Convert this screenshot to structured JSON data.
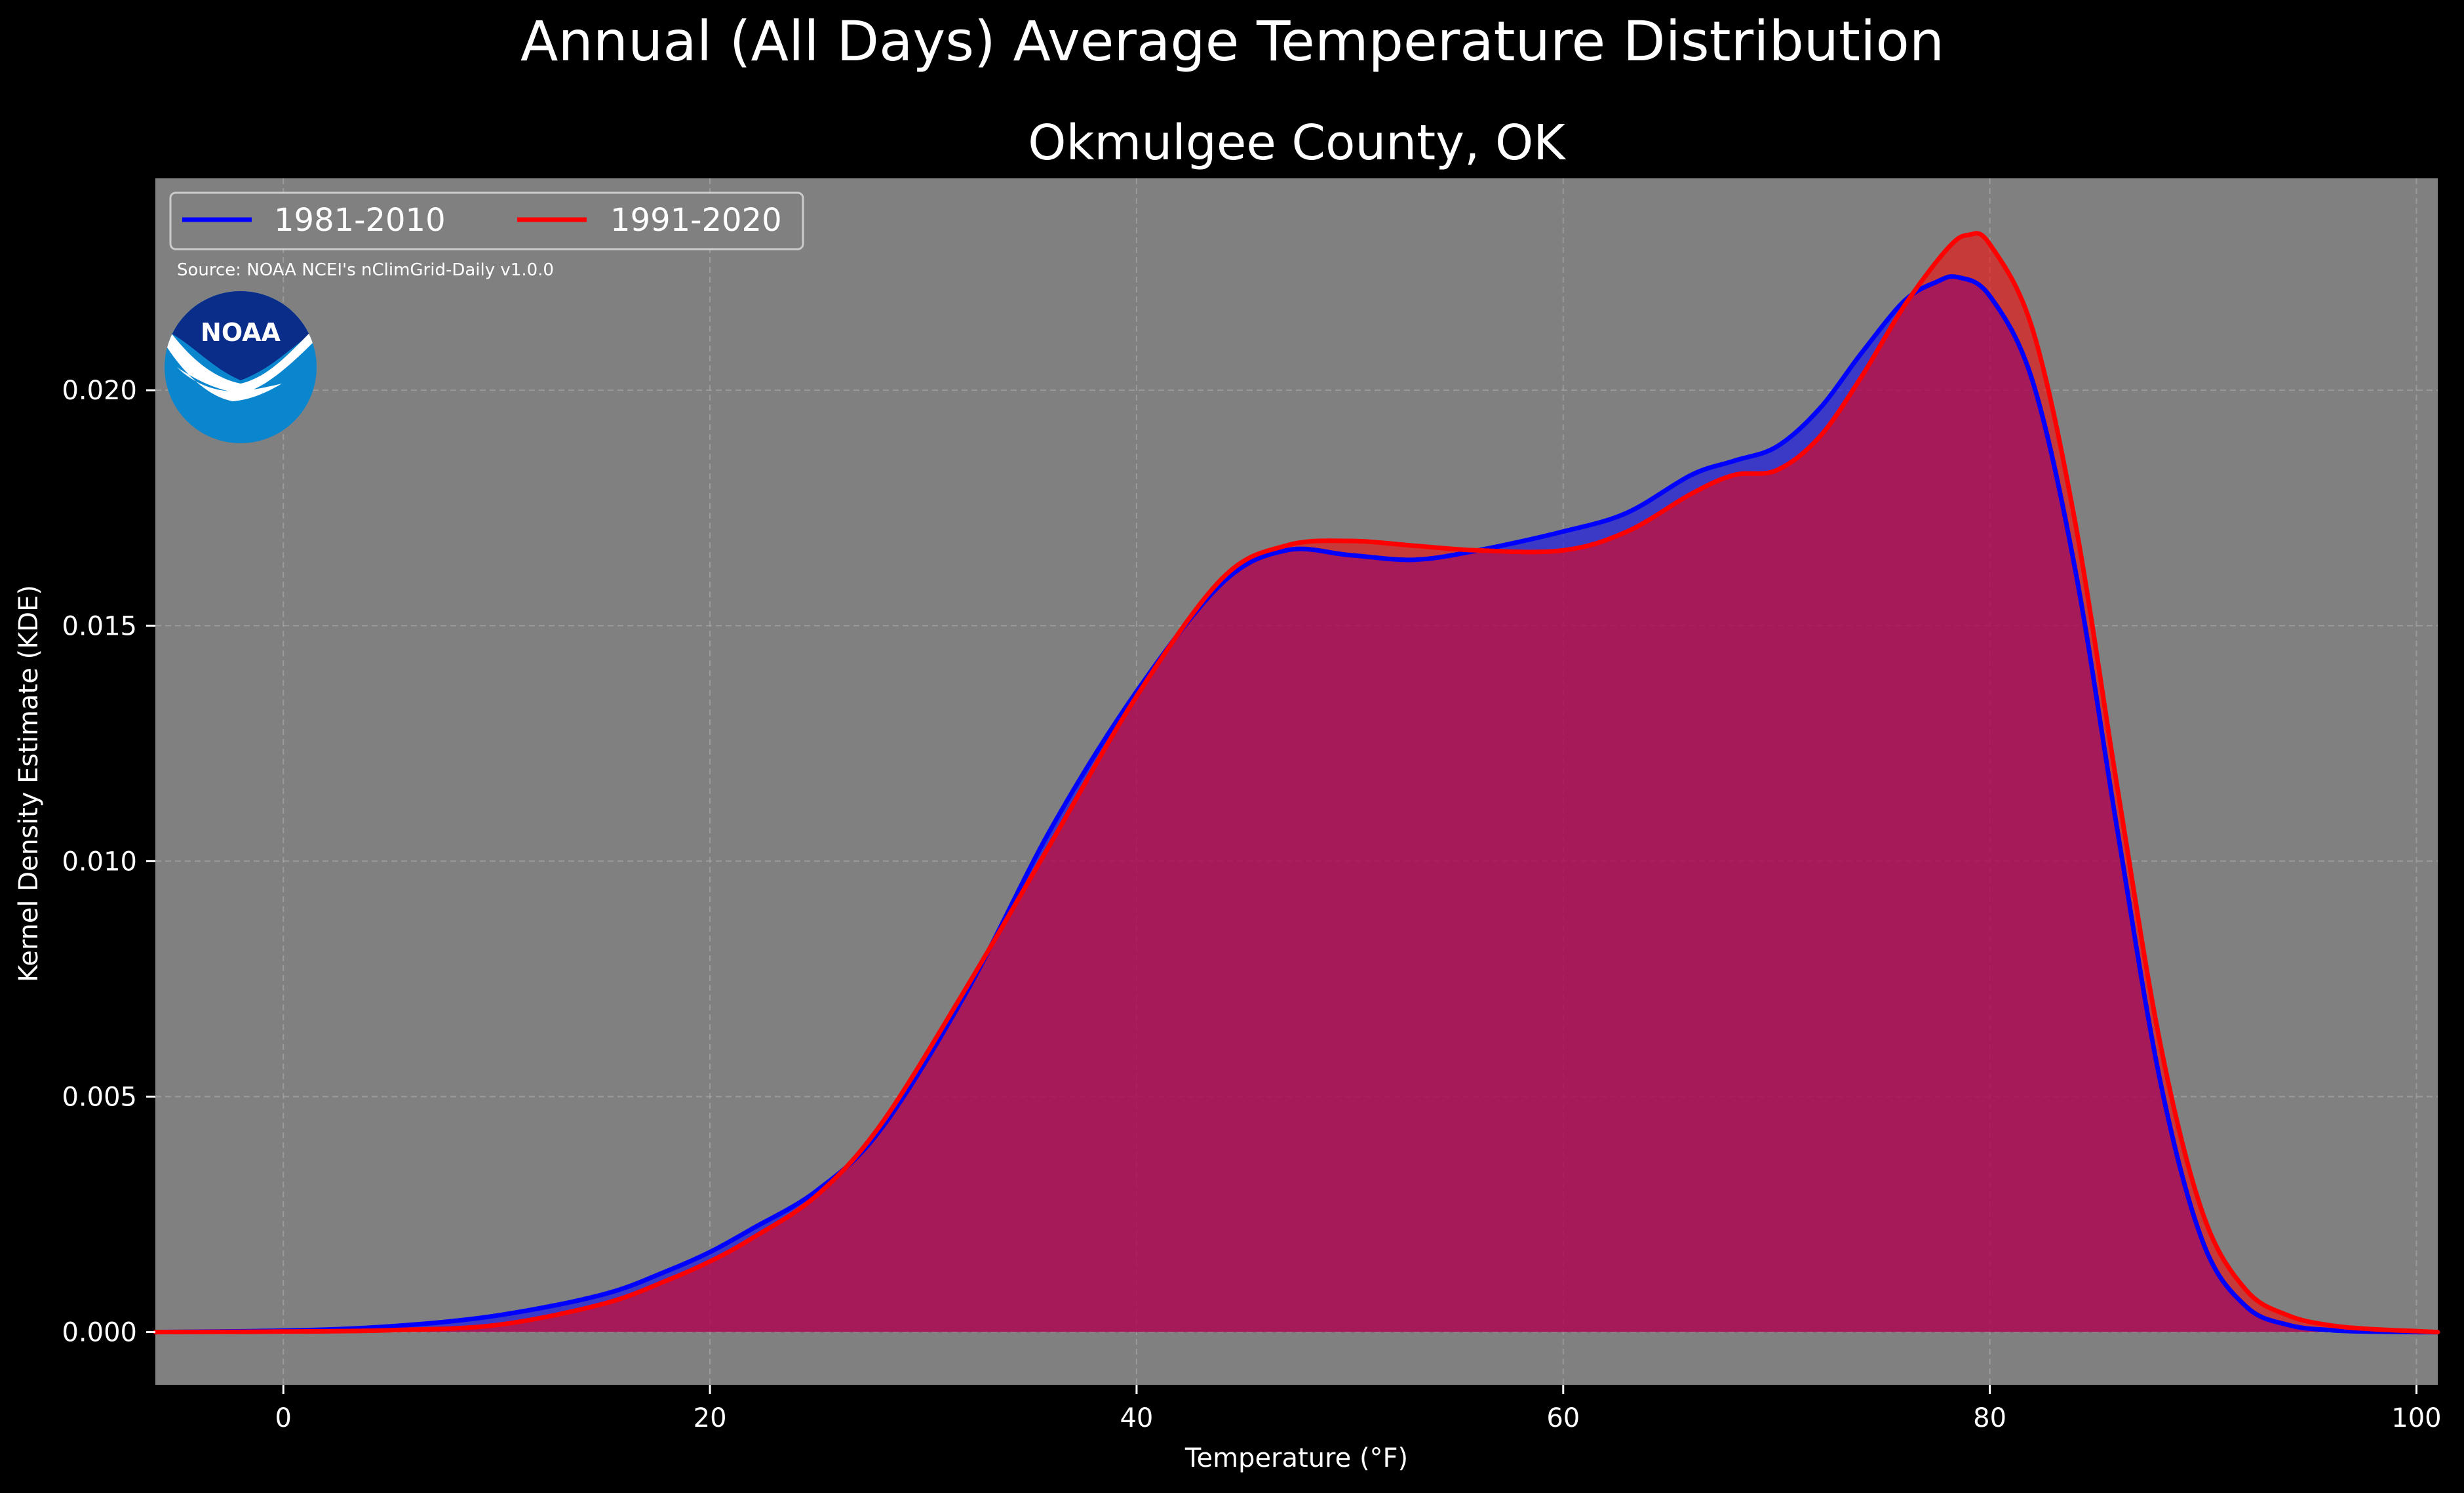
{
  "suptitle": "Annual (All Days) Average Temperature Distribution",
  "logo": {
    "text": "NOAA",
    "colors": {
      "top": "#0a2d8a",
      "bottom": "#0a86cf",
      "wave": "#ffffff"
    }
  },
  "chart_data": {
    "type": "area",
    "title": "Okmulgee County, OK",
    "xlabel": "Temperature ($^\\circ$F)",
    "xlabel_display": "Temperature (°F)",
    "ylabel": "Kernel Density Estimate (KDE)",
    "xlim": [
      -6,
      101
    ],
    "ylim": [
      -0.00112,
      0.0245
    ],
    "x_ticks": [
      0,
      20,
      40,
      60,
      80,
      100
    ],
    "x_tick_labels": [
      "0",
      "20",
      "40",
      "60",
      "80",
      "100"
    ],
    "y_ticks": [
      0.0,
      0.005,
      0.01,
      0.015,
      0.02
    ],
    "y_tick_labels": [
      "0.000",
      "0.005",
      "0.010",
      "0.015",
      "0.020"
    ],
    "grid": true,
    "background": "#808080",
    "legend_placement": "top-left",
    "annotation": "Source: NOAA NCEI's nClimGrid-Daily v1.0.0",
    "series": [
      {
        "name": "1981-2010",
        "color": "#0000ff",
        "fill_color": "#0000ff",
        "x": [
          -6,
          0,
          5,
          10,
          15,
          18,
          20,
          22,
          25,
          28,
          32,
          36,
          40,
          44,
          47,
          50,
          53,
          56,
          60,
          63,
          66,
          68,
          70,
          72,
          74,
          76,
          77.5,
          78.5,
          80,
          82,
          84,
          86,
          88,
          90,
          92,
          94,
          96,
          98,
          100,
          101
        ],
        "y": [
          0.0,
          3e-05,
          0.00012,
          0.00035,
          0.0008,
          0.0013,
          0.0017,
          0.0022,
          0.003,
          0.0043,
          0.0072,
          0.0107,
          0.0136,
          0.0159,
          0.0166,
          0.0165,
          0.0164,
          0.0166,
          0.017,
          0.0174,
          0.0182,
          0.0185,
          0.0188,
          0.0196,
          0.0208,
          0.0219,
          0.0223,
          0.0224,
          0.022,
          0.0202,
          0.0162,
          0.0106,
          0.0053,
          0.0019,
          0.00055,
          0.00015,
          4e-05,
          1e-05,
          0.0,
          0.0
        ]
      },
      {
        "name": "1991-2020",
        "color": "#ff0000",
        "fill_color": "#ff0000",
        "x": [
          -6,
          0,
          5,
          10,
          15,
          18,
          20,
          22,
          25,
          28,
          32,
          36,
          40,
          44,
          47,
          50,
          53,
          56,
          60,
          63,
          66,
          68,
          70,
          72,
          74,
          76,
          78,
          79,
          80,
          82,
          84,
          86,
          88,
          90,
          92,
          94,
          96,
          98,
          100,
          101
        ],
        "y": [
          0.0,
          1e-05,
          4e-05,
          0.00015,
          0.0006,
          0.0011,
          0.0015,
          0.002,
          0.0029,
          0.0044,
          0.0073,
          0.0104,
          0.0135,
          0.016,
          0.0167,
          0.0168,
          0.0167,
          0.0166,
          0.0166,
          0.017,
          0.0178,
          0.0182,
          0.0183,
          0.019,
          0.0203,
          0.0218,
          0.023,
          0.0233,
          0.0231,
          0.0213,
          0.0172,
          0.0115,
          0.0061,
          0.0025,
          0.0009,
          0.00035,
          0.00014,
          6e-05,
          2e-05,
          0.0
        ]
      }
    ]
  }
}
